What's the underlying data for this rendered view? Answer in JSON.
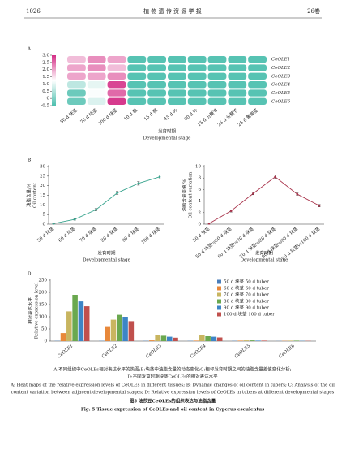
{
  "header": {
    "page": "1026",
    "journal": "植 物 遗 传 资 源 学 报",
    "volume": "26卷"
  },
  "chart_data": [
    {
      "type": "heatmap",
      "panel": "A",
      "rows": [
        "CeOLE1",
        "CeOLE2",
        "CeOLE3",
        "CeOLE4",
        "CeOLE5",
        "CeOLE6"
      ],
      "columns": [
        "50 d 块茎",
        "70 d 块茎",
        "100 d 块茎",
        "10 d 根",
        "15 d 根",
        "45 d 叶",
        "60 d 叶",
        "15 d 分蘖节",
        "25 d 分蘖节",
        "25 d 匍匐茎"
      ],
      "values": [
        [
          1.8,
          2.2,
          2.0,
          -0.4,
          -0.4,
          -0.4,
          -0.4,
          -0.4,
          -0.4,
          -0.4
        ],
        [
          2.0,
          2.2,
          1.8,
          -0.4,
          -0.4,
          -0.4,
          -0.4,
          -0.4,
          -0.4,
          -0.4
        ],
        [
          2.0,
          2.0,
          2.2,
          -0.4,
          -0.4,
          -0.4,
          -0.4,
          -0.4,
          -0.4,
          -0.4
        ],
        [
          0.6,
          1.0,
          2.8,
          -0.4,
          -0.4,
          -0.4,
          -0.4,
          -0.4,
          -0.4,
          -0.4
        ],
        [
          -0.2,
          1.2,
          2.5,
          -0.4,
          -0.4,
          -0.4,
          -0.4,
          -0.4,
          -0.4,
          -0.4
        ],
        [
          -0.2,
          0.9,
          2.9,
          -0.4,
          -0.4,
          -0.4,
          -0.4,
          -0.4,
          -0.4,
          -0.4
        ]
      ],
      "clim": [
        -0.5,
        3.0
      ],
      "cticks": [
        {
          "value": 3,
          "label": "3.0"
        },
        2.5,
        {
          "value": 2,
          "label": "2.0"
        },
        1.5,
        {
          "value": 1,
          "label": "1.0"
        },
        0.5,
        0,
        -0.5
      ],
      "colors": [
        "#4dbfae",
        "#ffffff",
        "#d42e86"
      ],
      "xlabel": "发育时期",
      "xlabel_en": "Developmental stage"
    },
    {
      "type": "line",
      "panel": "B",
      "color": "#3aa58f",
      "categories": [
        "50 d 块茎",
        "60 d 块茎",
        "70 d 块茎",
        "80 d 块茎",
        "90 d 块茎",
        "100 d 块茎"
      ],
      "values": [
        0.3,
        2.5,
        7.5,
        16.2,
        21.2,
        24.6
      ],
      "errors": [
        0.2,
        0.4,
        0.6,
        0.8,
        0.9,
        1.0
      ],
      "ylim": [
        0,
        30
      ],
      "yticks": [
        0,
        5,
        10,
        15,
        20,
        25,
        30
      ],
      "ylabel": "油脂含量/%",
      "ylabel_en": "Oil content",
      "xlabel": "发育时期",
      "xlabel_en": "Developmental stage"
    },
    {
      "type": "line",
      "panel": "C",
      "color": "#a8324a",
      "categories": [
        "50 d 块茎",
        "50 d 块茎vs60 d 块茎",
        "60 d 块茎vs70 d 块茎",
        "70 d 块茎vs80 d 块茎",
        "80 d 块茎vs90 d 块茎",
        "90 d 块茎vs100 d 块茎"
      ],
      "values": [
        0.1,
        2.3,
        5.3,
        8.2,
        5.2,
        3.2
      ],
      "errors": [
        0.1,
        0.2,
        0.2,
        0.3,
        0.2,
        0.2
      ],
      "ylim": [
        0,
        10
      ],
      "yticks": [
        0,
        2,
        4,
        6,
        8,
        10
      ],
      "ylabel": "油脂含量差值/%",
      "ylabel_en": "Oil content variation",
      "xlabel": "发育时期",
      "xlabel_en": "Developmental stage"
    },
    {
      "type": "bar",
      "panel": "D",
      "categories": [
        "CeOLE1",
        "CeOLE2",
        "CeOLE3",
        "CeOLE4",
        "CeOLE5",
        "CeOLE6"
      ],
      "series": [
        {
          "name": "50 d 块茎 50 d tuber",
          "color": "#4a7ebb",
          "values": [
            1,
            1,
            1,
            1,
            1,
            0.5
          ]
        },
        {
          "name": "60 d 块茎 60 d tuber",
          "color": "#e8883a",
          "values": [
            33,
            58,
            3,
            2,
            2,
            1
          ]
        },
        {
          "name": "70 d 块茎 70 d tuber",
          "color": "#c8b560",
          "values": [
            122,
            88,
            25,
            24,
            3,
            2
          ]
        },
        {
          "name": "80 d 块茎 80 d tuber",
          "color": "#6aa84f",
          "values": [
            190,
            108,
            22,
            20,
            3,
            2
          ]
        },
        {
          "name": "90 d 块茎 90 d tuber",
          "color": "#3d85c6",
          "values": [
            163,
            100,
            18,
            18,
            2,
            1
          ]
        },
        {
          "name": "100 d 块茎 100 d tuber",
          "color": "#c0504d",
          "values": [
            143,
            82,
            14,
            15,
            2,
            1
          ]
        }
      ],
      "ylim": [
        0,
        250
      ],
      "yticks": [
        0,
        50,
        100,
        150,
        200,
        250
      ],
      "ylabel": "相对表达水平",
      "ylabel_en": "Relative expression level"
    }
  ],
  "caption": {
    "lines": [
      "A:不同组织中CeOLEs相对表达水平的热图;B:块茎中油脂含量的动态变化;C:相邻发育时期之间的油脂含量差值变化分析;",
      "D:不同发育时期块茎CeOLEs的相对表达水平",
      "A: Heat maps of the relative expression levels of CeOLEs in different tissues; B: Dynamic changes of oil content in tubers; C: Analysis of the oil",
      "content variation between adjacent developmental stages; D: Relative expression levels of CeOLEs in tubers at different developmental stages"
    ],
    "title": "图5 油莎豆CeOLEs的组织表达与油脂含量",
    "title_en": "Fig. 5 Tissue expression of CeOLEs and oil content in Cyperus esculentus"
  }
}
